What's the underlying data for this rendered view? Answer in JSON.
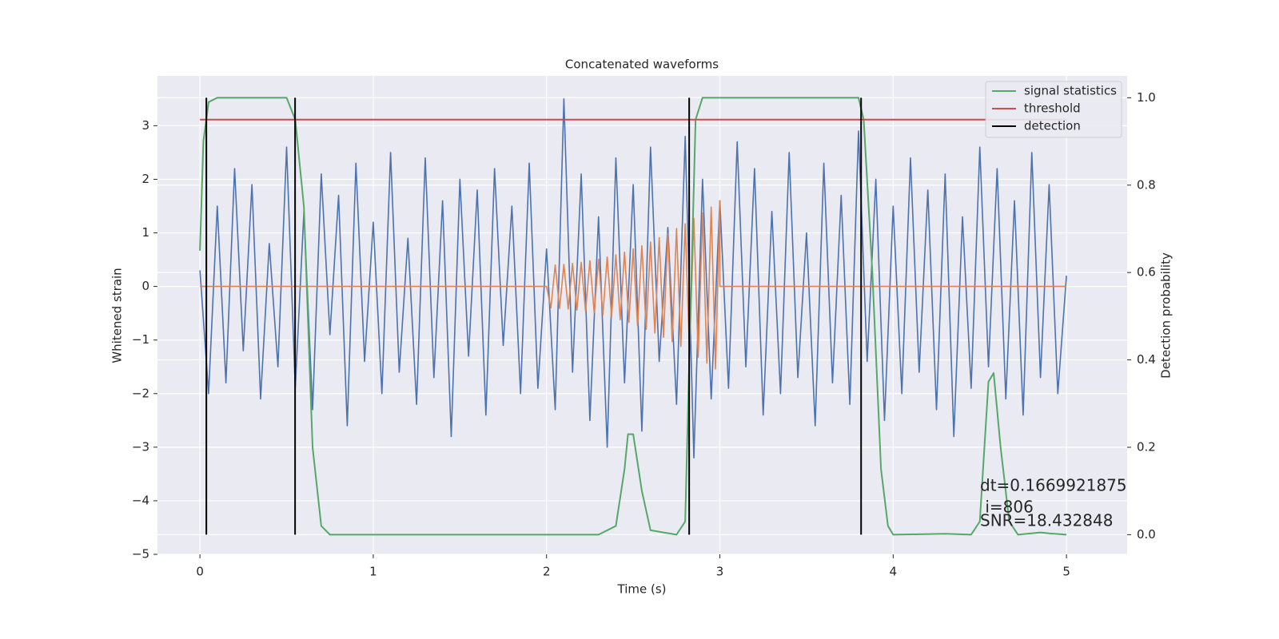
{
  "chart_data": {
    "type": "line",
    "title": "Concatenated waveforms",
    "xlabel": "Time (s)",
    "ylabel": "Whitened strain",
    "y2label": "Detection probability",
    "xlim": [
      -0.245,
      5.35
    ],
    "ylim": [
      -5.0,
      3.93
    ],
    "y2lim": [
      -0.045,
      1.05
    ],
    "xticks": [
      0,
      1,
      2,
      3,
      4,
      5
    ],
    "yticks": [
      {
        "value": -5,
        "label": "−5"
      },
      {
        "value": -4,
        "label": "−4"
      },
      {
        "value": -3,
        "label": "−3"
      },
      {
        "value": -2,
        "label": "−2"
      },
      {
        "value": -1,
        "label": "−1"
      },
      0,
      1,
      2,
      3
    ],
    "y2ticks": [
      {
        "value": 0,
        "label": "0.0"
      },
      0.2,
      0.4,
      0.6,
      0.8,
      {
        "value": 1,
        "label": "1.0"
      }
    ],
    "grid": true,
    "legend": "upper right",
    "series": [
      {
        "color": "#4c72b0",
        "x": [
          0,
          0.05,
          0.1,
          0.15,
          0.2,
          0.25,
          0.3,
          0.35,
          0.4,
          0.45,
          0.5,
          0.55,
          0.6,
          0.65,
          0.7,
          0.75,
          0.8,
          0.85,
          0.9,
          0.95,
          1,
          1.05,
          1.1,
          1.15,
          1.2,
          1.25,
          1.3,
          1.35,
          1.4,
          1.45,
          1.5,
          1.55,
          1.6,
          1.65,
          1.7,
          1.75,
          1.8,
          1.85,
          1.9,
          1.95,
          2,
          2.05,
          2.1,
          2.15,
          2.2,
          2.25,
          2.3,
          2.35,
          2.4,
          2.45,
          2.5,
          2.55,
          2.6,
          2.65,
          2.7,
          2.75,
          2.8,
          2.85,
          2.9,
          2.95,
          3,
          3.05,
          3.1,
          3.15,
          3.2,
          3.25,
          3.3,
          3.35,
          3.4,
          3.45,
          3.5,
          3.55,
          3.6,
          3.65,
          3.7,
          3.75,
          3.8,
          3.85,
          3.9,
          3.95,
          4,
          4.05,
          4.1,
          4.15,
          4.2,
          4.25,
          4.3,
          4.35,
          4.4,
          4.45,
          4.5,
          4.55,
          4.6,
          4.65,
          4.7,
          4.75,
          4.8,
          4.85,
          4.9,
          4.95,
          5
        ],
        "values": [
          0.3,
          -2.0,
          1.5,
          -1.8,
          2.2,
          -1.2,
          1.9,
          -2.1,
          0.8,
          -1.5,
          2.6,
          -1.9,
          1.4,
          -2.3,
          2.1,
          -0.9,
          1.7,
          -2.6,
          2.3,
          -1.4,
          1.2,
          -2.0,
          2.5,
          -1.6,
          0.9,
          -2.2,
          2.4,
          -1.7,
          1.6,
          -2.8,
          2.0,
          -1.3,
          1.8,
          -2.4,
          2.2,
          -1.1,
          1.5,
          -2.0,
          2.3,
          -1.9,
          0.7,
          -2.3,
          3.5,
          -1.6,
          2.1,
          -2.5,
          1.3,
          -3.0,
          2.4,
          -1.8,
          1.9,
          -2.7,
          2.6,
          -1.4,
          1.1,
          -2.2,
          2.8,
          -3.2,
          2.0,
          -2.1,
          1.6,
          -1.9,
          2.7,
          -1.5,
          2.2,
          -2.4,
          1.4,
          -2.0,
          2.5,
          -1.7,
          1.0,
          -2.6,
          2.3,
          -1.8,
          1.7,
          -2.2,
          2.9,
          -1.4,
          2.0,
          -2.5,
          1.5,
          -2.0,
          2.4,
          -1.6,
          1.8,
          -2.3,
          2.1,
          -2.8,
          1.3,
          -1.9,
          2.6,
          -1.5,
          2.2,
          -2.1,
          1.6,
          -2.4,
          2.5,
          -1.7,
          1.9,
          -2.0,
          0.2
        ]
      },
      {
        "color": "#dd8452",
        "x": [
          0,
          2,
          2.025,
          2.05,
          2.075,
          2.1,
          2.125,
          2.15,
          2.175,
          2.2,
          2.225,
          2.25,
          2.275,
          2.3,
          2.325,
          2.35,
          2.375,
          2.4,
          2.425,
          2.45,
          2.475,
          2.5,
          2.525,
          2.55,
          2.575,
          2.6,
          2.625,
          2.65,
          2.675,
          2.7,
          2.725,
          2.75,
          2.775,
          2.8,
          2.825,
          2.85,
          2.875,
          2.9,
          2.925,
          2.95,
          2.975,
          3,
          3,
          5
        ],
        "values": [
          0,
          0,
          -0.4,
          0.4,
          -0.41,
          0.41,
          -0.42,
          0.43,
          -0.44,
          0.45,
          -0.46,
          0.48,
          -0.49,
          0.51,
          -0.53,
          0.55,
          -0.57,
          0.59,
          -0.62,
          0.64,
          -0.67,
          0.7,
          -0.73,
          0.76,
          -0.8,
          0.83,
          -0.87,
          0.91,
          -0.95,
          0.99,
          -1.03,
          1.08,
          -1.12,
          1.17,
          -1.22,
          1.27,
          -1.32,
          1.37,
          -1.43,
          1.48,
          -1.54,
          1.6,
          0,
          0
        ]
      },
      {
        "name": "signal statistics",
        "color": "#55a868",
        "axis": "y2",
        "x": [
          0,
          0.02,
          0.05,
          0.1,
          0.5,
          0.55,
          0.6,
          0.65,
          0.7,
          0.75,
          2.3,
          2.4,
          2.45,
          2.47,
          2.5,
          2.55,
          2.6,
          2.75,
          2.8,
          2.83,
          2.86,
          2.9,
          3.8,
          3.83,
          3.88,
          3.93,
          3.97,
          4.0,
          4.3,
          4.45,
          4.5,
          4.55,
          4.58,
          4.62,
          4.67,
          4.72,
          4.85,
          4.9,
          5.0
        ],
        "values": [
          0.65,
          0.9,
          0.99,
          1.0,
          1.0,
          0.95,
          0.75,
          0.2,
          0.02,
          0.0,
          0.0,
          0.02,
          0.15,
          0.23,
          0.23,
          0.1,
          0.01,
          0.0,
          0.03,
          0.5,
          0.95,
          1.0,
          1.0,
          0.95,
          0.6,
          0.15,
          0.02,
          0.0,
          0.002,
          0.0,
          0.03,
          0.35,
          0.37,
          0.2,
          0.03,
          0.0,
          0.005,
          0.003,
          0.0
        ]
      },
      {
        "name": "threshold",
        "color": "#c44e52",
        "axis": "y2",
        "x": [
          0,
          5
        ],
        "values": [
          0.95,
          0.95
        ]
      },
      {
        "name": "detection",
        "color": "#000000",
        "axis": "y2",
        "vlines": [
          0.037,
          0.549,
          2.823,
          3.815
        ],
        "values": [
          0,
          1
        ]
      }
    ],
    "annotations": [
      "dt=0.1669921875",
      " i=806",
      "SNR=18.432848"
    ]
  }
}
